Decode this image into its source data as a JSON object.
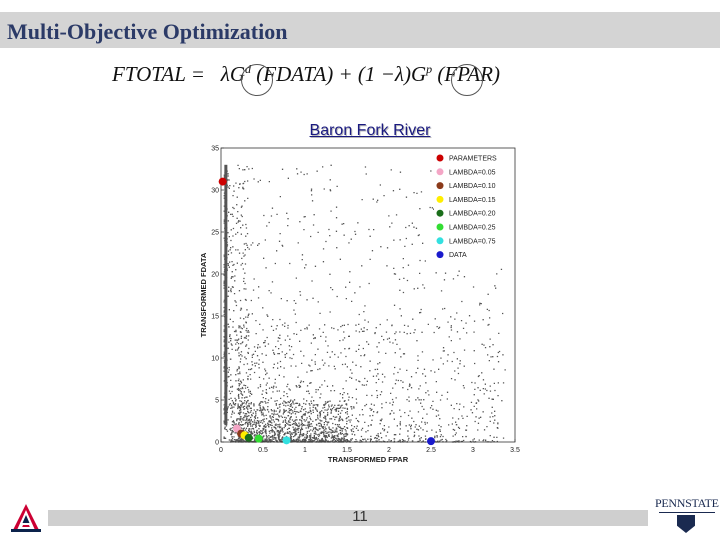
{
  "slide": {
    "title": "Multi-Objective Optimization",
    "page_number": "11"
  },
  "equation": {
    "lhs": "FTOTAL",
    "eq": "=",
    "lambda1": "λ",
    "g1": "G",
    "g1_sup": "d",
    "arg1": "(FDATA)",
    "plus": "+",
    "paren_open": "(1 −",
    "lambda2": "λ",
    "paren_close": ")",
    "g2": "G",
    "g2_sup": "p",
    "arg2": "(FPAR)"
  },
  "logos": {
    "left": "university-of-arizona-logo",
    "right_text": "PENNSTATE"
  },
  "chart_data": {
    "type": "scatter",
    "title": "Baron Fork River",
    "xlabel": "TRANSFORMED FPAR",
    "ylabel": "TRANSFORMED FDATA",
    "xlim": [
      0,
      3.5
    ],
    "ylim": [
      0,
      35
    ],
    "xticks": [
      "0",
      "0.5",
      "1",
      "1.5",
      "2",
      "2.5",
      "3",
      "3.5"
    ],
    "yticks": [
      "0",
      "5",
      "10",
      "15",
      "20",
      "25",
      "30",
      "35"
    ],
    "grid": false,
    "legend_position": "top-right",
    "parameter_cloud": {
      "color": "#555555",
      "approx_count": 3000,
      "description_shape": "dense near origin, decaying toward upper-right"
    },
    "series": [
      {
        "name": "PARAMETERS",
        "color": "#cc0000",
        "x": [
          0.02
        ],
        "y": [
          31.0
        ]
      },
      {
        "name": "LAMBDA=0.05",
        "color": "#f4a6c6",
        "x": [
          0.19
        ],
        "y": [
          1.6
        ]
      },
      {
        "name": "LAMBDA=0.10",
        "color": "#8b3a1a",
        "x": [
          0.24
        ],
        "y": [
          1.0
        ]
      },
      {
        "name": "LAMBDA=0.15",
        "color": "#ffee00",
        "x": [
          0.28
        ],
        "y": [
          0.8
        ]
      },
      {
        "name": "LAMBDA=0.20",
        "color": "#1a6e1a",
        "x": [
          0.33
        ],
        "y": [
          0.5
        ]
      },
      {
        "name": "LAMBDA=0.25",
        "color": "#33dd33",
        "x": [
          0.45
        ],
        "y": [
          0.4
        ]
      },
      {
        "name": "LAMBDA=0.75",
        "color": "#33e0e0",
        "x": [
          0.78
        ],
        "y": [
          0.2
        ]
      },
      {
        "name": "DATA",
        "color": "#1a1acc",
        "x": [
          2.5
        ],
        "y": [
          0.1
        ]
      }
    ]
  }
}
